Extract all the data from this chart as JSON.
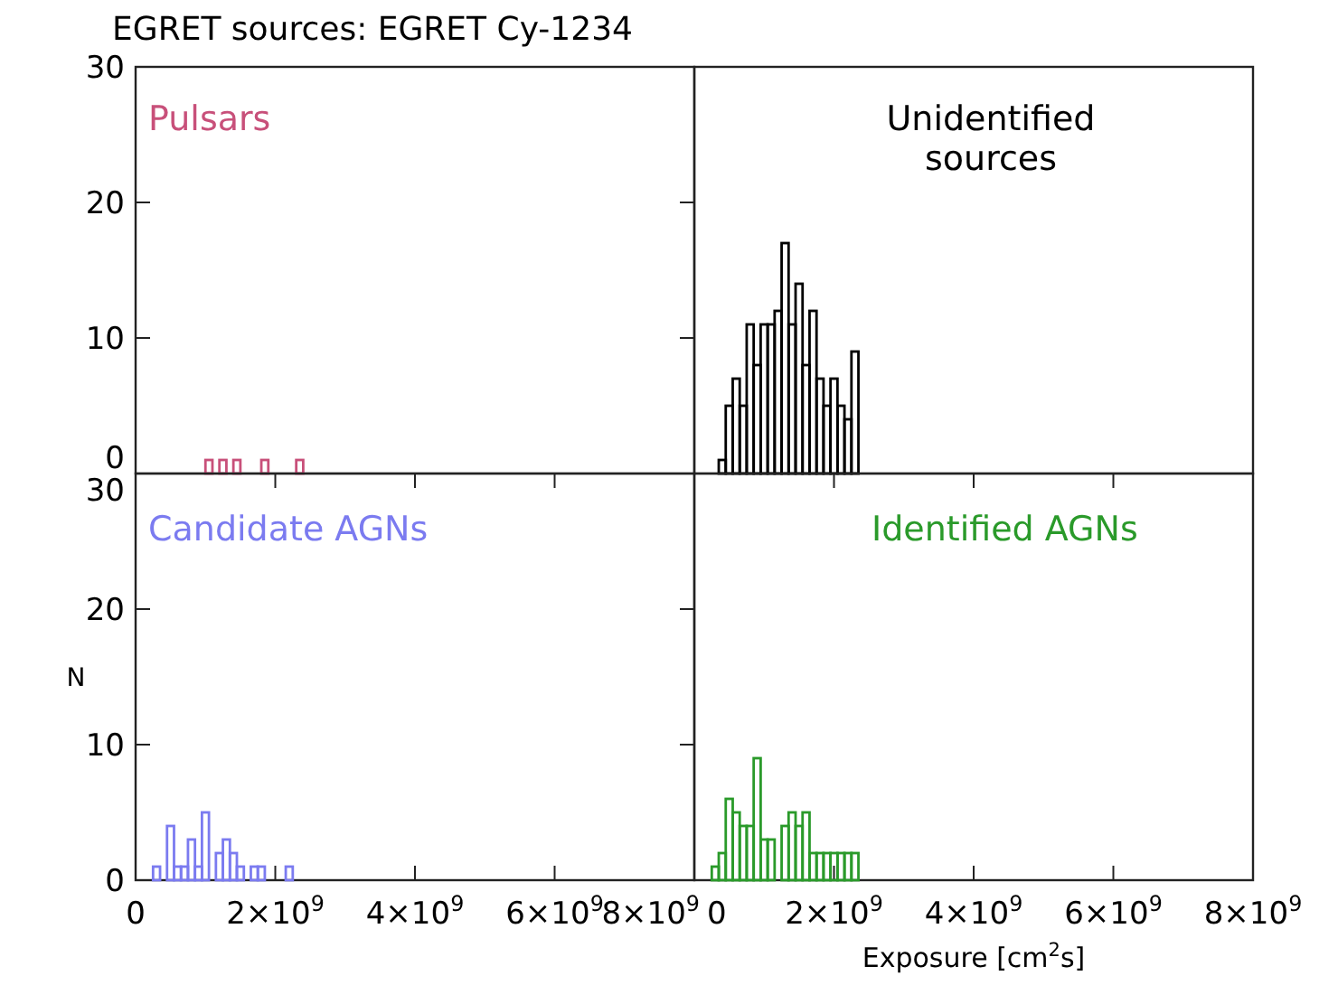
{
  "chart_data": [
    {
      "type": "histogram",
      "title": "EGRET sources: EGRET Cy-1234",
      "xlim": [
        0,
        8000000000
      ],
      "ylim": [
        0,
        30
      ],
      "yticks": [
        0,
        10,
        20,
        30
      ],
      "tick_labels": "y",
      "bins": [
        1000000000,
        1100000000,
        1200000000,
        1300000000,
        1400000000,
        1500000000,
        1600000000,
        1700000000,
        1800000000,
        1900000000,
        2000000000,
        2100000000,
        2200000000,
        2300000000,
        2400000000
      ],
      "series": [
        {
          "name": "Pulsars",
          "color": "#c8507a",
          "values": [
            1,
            0,
            1,
            0,
            1,
            0,
            0,
            0,
            1,
            0,
            0,
            0,
            0,
            1
          ]
        }
      ]
    },
    {
      "type": "histogram",
      "xlim": [
        0,
        8000000000
      ],
      "ylim": [
        0,
        30
      ],
      "tick_labels": false,
      "bins": [
        350000000,
        450000000,
        550000000,
        650000000,
        750000000,
        850000000,
        950000000,
        1050000000,
        1150000000,
        1250000000,
        1350000000,
        1450000000,
        1550000000,
        1650000000,
        1750000000,
        1850000000,
        1950000000,
        2050000000,
        2150000000,
        2250000000,
        2350000000
      ],
      "series": [
        {
          "name": "Unidentified sources",
          "color": "#000000",
          "values": [
            1,
            5,
            7,
            5,
            11,
            8,
            11,
            11,
            12,
            17,
            11,
            14,
            8,
            12,
            7,
            5,
            7,
            5,
            4,
            9
          ]
        }
      ]
    },
    {
      "type": "histogram",
      "ylabel": "N",
      "xlim": [
        0,
        8000000000
      ],
      "ylim": [
        0,
        30
      ],
      "yticks": [
        0,
        10,
        20,
        30
      ],
      "xticks": [
        0,
        {
          "value": 2000000000,
          "label": "2×10$^{9}$"
        },
        {
          "value": 4000000000,
          "label": "4×10$^{9}$"
        },
        {
          "value": 6000000000,
          "label": "6×10$^{9}$"
        },
        {
          "value": 8000000000,
          "label": "8×10$^{9}$"
        }
      ],
      "bins": [
        250000000,
        350000000,
        450000000,
        550000000,
        650000000,
        750000000,
        850000000,
        950000000,
        1050000000,
        1150000000,
        1250000000,
        1350000000,
        1450000000,
        1550000000,
        1650000000,
        1750000000,
        1850000000,
        1950000000,
        2050000000,
        2150000000,
        2250000000
      ],
      "series": [
        {
          "name": "Candidate AGNs",
          "color": "#7b7bf0",
          "values": [
            1,
            0,
            4,
            1,
            1,
            3,
            1,
            5,
            0,
            2,
            3,
            2,
            1,
            0,
            1,
            1,
            0,
            0,
            0,
            1
          ]
        }
      ]
    },
    {
      "type": "histogram",
      "xlabel": "Exposure [cm$^{2}$s]",
      "xlim": [
        0,
        8000000000
      ],
      "ylim": [
        0,
        30
      ],
      "tick_labels": "x",
      "xticks": [
        0,
        {
          "value": 2000000000,
          "label": "2×10$^{9}$"
        },
        {
          "value": 4000000000,
          "label": "4×10$^{9}$"
        },
        {
          "value": 6000000000,
          "label": "6×10$^{9}$"
        },
        {
          "value": 8000000000,
          "label": "8×10$^{9}$"
        }
      ],
      "bins": [
        250000000,
        350000000,
        450000000,
        550000000,
        650000000,
        750000000,
        850000000,
        950000000,
        1050000000,
        1150000000,
        1250000000,
        1350000000,
        1450000000,
        1550000000,
        1650000000,
        1750000000,
        1850000000,
        1950000000,
        2050000000,
        2150000000,
        2250000000,
        2350000000
      ],
      "series": [
        {
          "name": "Identified AGNs",
          "color": "#2a9a2a",
          "values": [
            1,
            2,
            6,
            5,
            4,
            4,
            9,
            3,
            3,
            0,
            4,
            5,
            4,
            5,
            2,
            2,
            2,
            2,
            2,
            2,
            2
          ]
        }
      ]
    }
  ]
}
